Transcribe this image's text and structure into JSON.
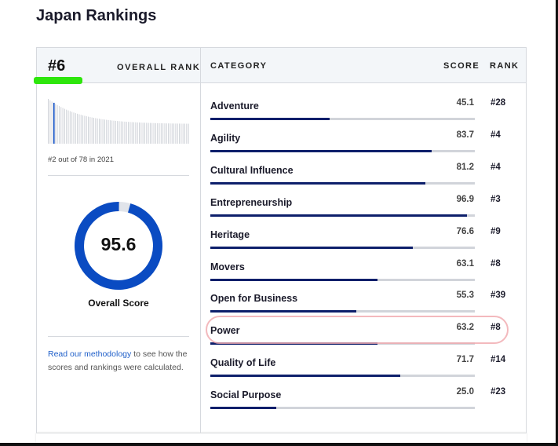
{
  "title": "Japan Rankings",
  "overall": {
    "rank": "#6",
    "label": "OVERALL RANK",
    "history_text": "#2 out of 78 in 2021",
    "score": 95.6,
    "score_text": "95.6",
    "score_label": "Overall Score",
    "highlight_index": 3
  },
  "columns": {
    "category": "CATEGORY",
    "score": "SCORE",
    "rank": "RANK"
  },
  "note": {
    "pre": "Read our ",
    "link": "methodology",
    "post": " to see how the scores and rankings were calculated."
  },
  "categories": [
    {
      "name": "Adventure",
      "score": "45.1",
      "rank": "#28"
    },
    {
      "name": "Agility",
      "score": "83.7",
      "rank": "#4"
    },
    {
      "name": "Cultural Influence",
      "score": "81.2",
      "rank": "#4"
    },
    {
      "name": "Entrepreneurship",
      "score": "96.9",
      "rank": "#3"
    },
    {
      "name": "Heritage",
      "score": "76.6",
      "rank": "#9"
    },
    {
      "name": "Movers",
      "score": "63.1",
      "rank": "#8"
    },
    {
      "name": "Open for Business",
      "score": "55.3",
      "rank": "#39"
    },
    {
      "name": "Power",
      "score": "63.2",
      "rank": "#8"
    },
    {
      "name": "Quality of Life",
      "score": "71.7",
      "rank": "#14"
    },
    {
      "name": "Social Purpose",
      "score": "25.0",
      "rank": "#23"
    }
  ],
  "colors": {
    "accent": "#0a4bc2",
    "bar": "#0d1f6b",
    "track": "#d1d4da"
  }
}
